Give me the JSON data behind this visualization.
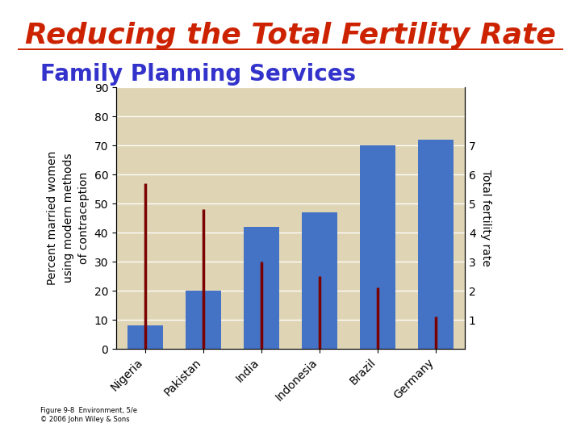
{
  "title": "Reducing the Total Fertility Rate",
  "subtitle": "Family Planning Services",
  "title_color": "#cc2200",
  "subtitle_color": "#3333cc",
  "background_color": "#ffffff",
  "plot_bg_color": "#dfd5b5",
  "categories": [
    "Nigeria",
    "Pakistan",
    "India",
    "Indonesia",
    "Brazil",
    "Germany"
  ],
  "bar_values": [
    8,
    20,
    42,
    47,
    70,
    72
  ],
  "bar_color": "#4472c4",
  "tfr_values": [
    57,
    48,
    30,
    25,
    21,
    11
  ],
  "tfr_color": "#7b0000",
  "ylabel_left": "Percent married women\nusing modern methods\nof contraception",
  "ylabel_right": "Total fertility rate",
  "ylim_left": [
    0,
    90
  ],
  "yticks_left": [
    0,
    10,
    20,
    30,
    40,
    50,
    60,
    70,
    80,
    90
  ],
  "yticks_right_labels": [
    "1",
    "2",
    "3",
    "4",
    "5",
    "6",
    "7"
  ],
  "yticks_right_positions": [
    10,
    20,
    30,
    40,
    50,
    60,
    70
  ],
  "footnote": "Figure 9-8  Environment, 5/e\n© 2006 John Wiley & Sons",
  "title_fontsize": 26,
  "subtitle_fontsize": 20,
  "ylabel_fontsize": 10,
  "tick_fontsize": 10
}
